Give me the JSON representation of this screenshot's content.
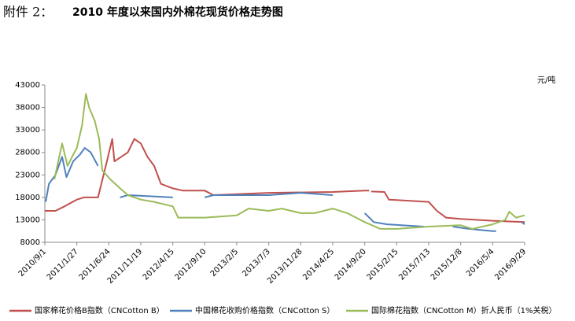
{
  "chart_data": {
    "type": "line",
    "label": "附件 2：",
    "title": "2010 年度以来国内外棉花现货价格走势图",
    "y_unit": "元/吨",
    "ylim": [
      8000,
      43000
    ],
    "yticks": [
      8000,
      13000,
      18000,
      23000,
      28000,
      33000,
      38000,
      43000
    ],
    "xlim": [
      "2010/9/1",
      "2016/9/29"
    ],
    "xticks": [
      "2010/9/1",
      "2011/1/27",
      "2011/6/24",
      "2011/11/19",
      "2012/4/15",
      "2012/9/10",
      "2013/2/5",
      "2013/7/3",
      "2013/11/28",
      "2014/4/25",
      "2014/9/20",
      "2015/2/15",
      "2015/7/13",
      "2015/12/8",
      "2016/5/4",
      "2016/9/29"
    ],
    "grid": false,
    "legend": "bottom",
    "series": [
      {
        "name": "国家棉花价格B指数（CNCotton B）",
        "color": "#c0504d",
        "x": [
          "2010/9/1",
          "2010/10/20",
          "2010/12/1",
          "2011/1/27",
          "2011/3/1",
          "2011/5/5",
          "2011/6/10",
          "2011/7/10",
          "2011/7/20",
          "2011/8/20",
          "2011/9/20",
          "2011/10/20",
          "2011/11/19",
          "2011/12/20",
          "2012/1/20",
          "2012/2/20",
          "2012/4/15",
          "2012/6/1",
          "2012/9/10",
          "2012/10/20",
          "2013/7/3",
          "2014/4/25",
          "2014/9/20",
          "2014/10/10",
          null,
          "2014/10/20",
          "2014/12/20",
          "2015/1/10",
          "2015/7/13",
          "2015/8/20",
          "2015/10/1",
          "2015/12/8",
          "2016/5/4",
          "2016/9/29"
        ],
        "values": [
          15000,
          15000,
          16000,
          17500,
          18000,
          18000,
          25000,
          31000,
          26000,
          27000,
          28000,
          31000,
          30000,
          27000,
          25000,
          21000,
          20000,
          19500,
          19500,
          18500,
          19000,
          19200,
          19500,
          19500,
          null,
          19300,
          19200,
          17500,
          17000,
          15000,
          13500,
          13200,
          12800,
          12500
        ]
      },
      {
        "name": "中国棉花收购价格指数（CNCotton S）",
        "color": "#4f81bd",
        "x": [
          "2010/9/5",
          "2010/9/20",
          "2010/10/20",
          "2010/11/20",
          "2010/12/10",
          "2011/1/10",
          "2011/2/10",
          "2011/3/5",
          "2011/4/1",
          "2011/5/5",
          null,
          "2011/8/15",
          "2011/9/20",
          "2012/4/15",
          null,
          "2012/9/10",
          "2012/10/20",
          "2013/7/3",
          "2013/11/28",
          "2014/4/25",
          null,
          "2014/9/20",
          "2014/11/1",
          "2015/1/1",
          "2015/6/20",
          null,
          "2015/11/1",
          "2016/1/15",
          "2016/5/4",
          "2016/5/20",
          null,
          "2016/9/15",
          "2016/9/29"
        ],
        "values": [
          17000,
          21000,
          23000,
          27000,
          22500,
          26000,
          27500,
          29000,
          28000,
          25000,
          null,
          18000,
          18500,
          18000,
          null,
          18000,
          18500,
          18500,
          19000,
          18500,
          null,
          14500,
          12500,
          12000,
          11500,
          null,
          11500,
          11000,
          10500,
          10500,
          null,
          12500,
          12000
        ]
      },
      {
        "name": "国际棉花指数（CNCotton M）折人民币（1%关税）",
        "color": "#9bbb59",
        "x": [
          "2010/10/15",
          "2010/11/20",
          "2010/12/15",
          "2011/1/5",
          "2011/1/27",
          "2011/2/20",
          "2011/3/10",
          "2011/3/25",
          "2011/4/20",
          "2011/5/10",
          "2011/5/25",
          "2011/7/1",
          "2011/8/15",
          "2011/9/20",
          "2011/11/19",
          "2012/1/20",
          "2012/4/15",
          "2012/5/10",
          "2012/9/10",
          "2013/2/5",
          "2013/4/1",
          "2013/7/3",
          "2013/9/1",
          "2013/11/28",
          "2014/2/1",
          "2014/4/25",
          "2014/7/1",
          "2014/9/20",
          "2014/12/1",
          "2015/2/15",
          "2015/7/13",
          "2015/12/8",
          "2016/2/1",
          "2016/5/4",
          "2016/7/1",
          "2016/7/20",
          "2016/8/20",
          "2016/9/29"
        ],
        "values": [
          22000,
          30000,
          25000,
          27000,
          29000,
          34000,
          41000,
          38000,
          35000,
          31000,
          24000,
          22000,
          20000,
          18500,
          17500,
          17000,
          16000,
          13500,
          13500,
          14000,
          15500,
          15000,
          15500,
          14500,
          14500,
          15500,
          14500,
          12500,
          11000,
          11000,
          11500,
          11800,
          11000,
          12000,
          13000,
          14800,
          13500,
          14000
        ]
      }
    ]
  }
}
